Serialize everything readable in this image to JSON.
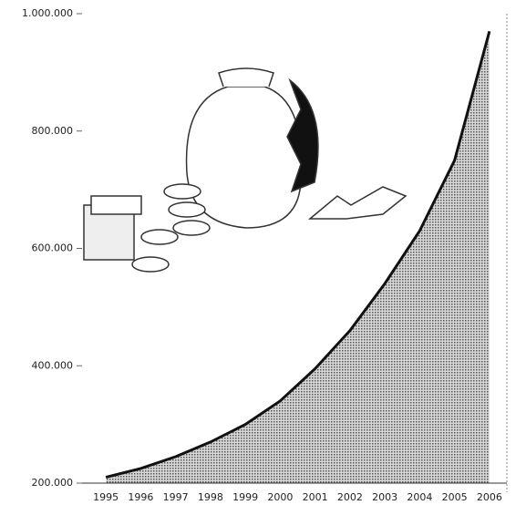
{
  "chart_data": {
    "type": "area",
    "categories": [
      "1995",
      "1996",
      "1997",
      "1998",
      "1999",
      "2000",
      "2001",
      "2002",
      "2003",
      "2004",
      "2005",
      "2006"
    ],
    "values": [
      210000,
      225000,
      245000,
      270000,
      300000,
      340000,
      395000,
      460000,
      540000,
      630000,
      750000,
      970000
    ],
    "color": "#9a9a9a",
    "ylim": [
      200000,
      1000000
    ],
    "yticks": [
      {
        "value": 200000,
        "label": "200.000"
      },
      {
        "value": 400000,
        "label": "400.000"
      },
      {
        "value": 600000,
        "label": "600.000"
      },
      {
        "value": 800000,
        "label": "800.000"
      },
      {
        "value": 1000000,
        "label": "1.000.000"
      }
    ],
    "grid": false
  }
}
